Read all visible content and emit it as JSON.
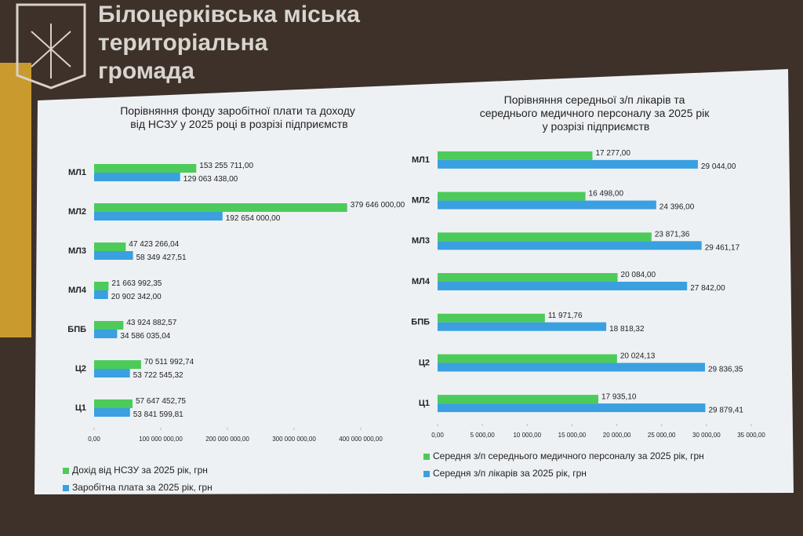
{
  "header": {
    "title": "Білоцерківська міська територіальна громада"
  },
  "chart_data": [
    {
      "type": "bar",
      "horizontal": true,
      "title": "Порівняння фонду заробітної плати та доходу від НСЗУ у 2025 році в розрізі підприємств",
      "categories": [
        "МЛ1",
        "МЛ2",
        "МЛ3",
        "МЛ4",
        "БПБ",
        "Ц2",
        "Ц1"
      ],
      "series": [
        {
          "name": "Дохід від НСЗУ за 2025 рік, грн",
          "color": "#4ccb5a",
          "values": [
            153255711,
            379646000,
            47423266.04,
            21663992.35,
            43924882.57,
            70511992.74,
            57647452.75
          ],
          "value_labels": [
            "153 255 711,00",
            "379 646 000,00",
            "47 423 266,04",
            "21 663 992,35",
            "43 924 882,57",
            "70 511 992,74",
            "57 647 452,75"
          ]
        },
        {
          "name": "Заробітна плата за 2025 рік, грн",
          "color": "#3aa0e0",
          "values": [
            129063438,
            192654000,
            58349427.51,
            20902342,
            34586035.04,
            53722545.32,
            53841599.81
          ],
          "value_labels": [
            "129 063 438,00",
            "192 654 000,00",
            "58 349 427,51",
            "20 902 342,00",
            "34 586 035,04",
            "53 722 545,32",
            "53 841 599,81"
          ]
        }
      ],
      "xlim": [
        0,
        400000000
      ],
      "xticks": [
        {
          "value": 0,
          "label": "0,00"
        },
        {
          "value": 100000000,
          "label": "100 000 000,00"
        },
        {
          "value": 200000000,
          "label": "200 000 000,00"
        },
        {
          "value": 300000000,
          "label": "300 000 000,00"
        },
        {
          "value": 400000000,
          "label": "400 000 000,00"
        }
      ],
      "legend": "bottom"
    },
    {
      "type": "bar",
      "horizontal": true,
      "title": "Порівняння середньої з/п лікарів та середнього медичного персоналу за 2025 рік у розрізі підприємств",
      "categories": [
        "МЛ1",
        "МЛ2",
        "МЛ3",
        "МЛ4",
        "БПБ",
        "Ц2",
        "Ц1"
      ],
      "series": [
        {
          "name": "Середня з/п середнього медичного персоналу за 2025 рік, грн",
          "color": "#4ccb5a",
          "values": [
            17277,
            16498,
            23871.36,
            20084,
            11971.76,
            20024.13,
            17935.1
          ],
          "value_labels": [
            "17 277,00",
            "16 498,00",
            "23 871,36",
            "20 084,00",
            "11 971,76",
            "20 024,13",
            "17 935,10"
          ]
        },
        {
          "name": "Середня з/п лікарів за 2025 рік, грн",
          "color": "#3aa0e0",
          "values": [
            29044,
            24396,
            29461.17,
            27842,
            18818.32,
            29836.35,
            29879.41
          ],
          "value_labels": [
            "29 044,00",
            "24 396,00",
            "29 461,17",
            "27 842,00",
            "18 818,32",
            "29 836,35",
            "29 879,41"
          ]
        }
      ],
      "xlim": [
        0,
        35000
      ],
      "xticks": [
        {
          "value": 0,
          "label": "0,00"
        },
        {
          "value": 5000,
          "label": "5 000,00"
        },
        {
          "value": 10000,
          "label": "10 000,00"
        },
        {
          "value": 15000,
          "label": "15 000,00"
        },
        {
          "value": 20000,
          "label": "20 000,00"
        },
        {
          "value": 25000,
          "label": "25 000,00"
        },
        {
          "value": 30000,
          "label": "30 000,00"
        },
        {
          "value": 35000,
          "label": "35 000,00"
        }
      ],
      "legend": "bottom"
    }
  ]
}
